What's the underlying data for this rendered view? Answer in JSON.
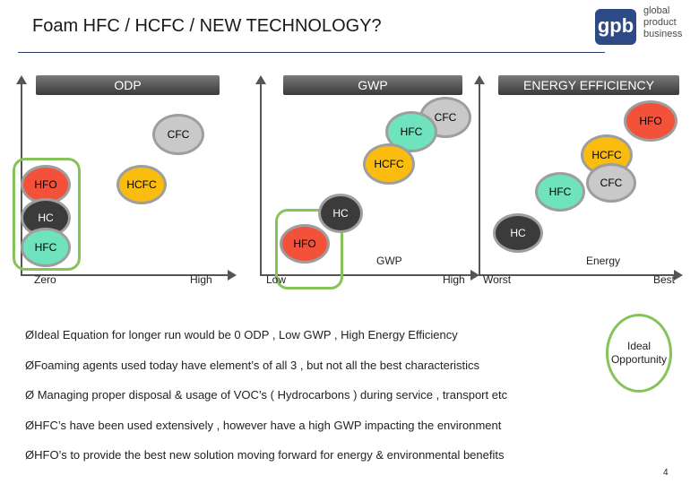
{
  "title": "Foam HFC / HCFC / NEW TECHNOLOGY?",
  "logo": {
    "mark": "gpb",
    "lines": [
      "global",
      "product",
      "business"
    ]
  },
  "panels": {
    "odp": {
      "header": "ODP",
      "x_low": "Zero",
      "x_high": "High",
      "bubbles": {
        "cfc": "CFC",
        "hfo": "HFO",
        "hcfc": "HCFC",
        "hc": "HC",
        "hfc": "HFC"
      }
    },
    "gwp": {
      "header": "GWP",
      "x_low": "Low",
      "x_high": "High",
      "axis_title": "GWP",
      "bubbles": {
        "cfc": "CFC",
        "hfc": "HFC",
        "hcfc": "HCFC",
        "hc": "HC",
        "hfo": "HFO"
      }
    },
    "energy": {
      "header": "ENERGY EFFICIENCY",
      "x_low": "Worst",
      "x_high": "Best",
      "axis_title": "Energy",
      "bubbles": {
        "hfo": "HFO",
        "hcfc": "HCFC",
        "cfc": "CFC",
        "hfc": "HFC",
        "hc": "HC"
      }
    }
  },
  "bullets": [
    "ØIdeal Equation for longer run would be 0 ODP , Low GWP , High Energy Efficiency",
    "ØFoaming agents used today have element’s of all 3 , but not all the best characteristics",
    "Ø Managing proper disposal & usage of VOC’s ( Hydrocarbons ) during service , transport etc",
    "ØHFC’s have been used extensively , however have a high GWP impacting the environment",
    "ØHFO’s to provide the best new solution moving forward for energy & environmental benefits"
  ],
  "ideal": "Ideal Opportunity",
  "page_number": "4",
  "colors": {
    "hfo": "#f4513a",
    "hcfc": "#f9bc0f",
    "hfc": "#6fe3bd",
    "cfc": "#c9c9c9",
    "hc": "#3b3b3b",
    "green": "#86c35a"
  }
}
